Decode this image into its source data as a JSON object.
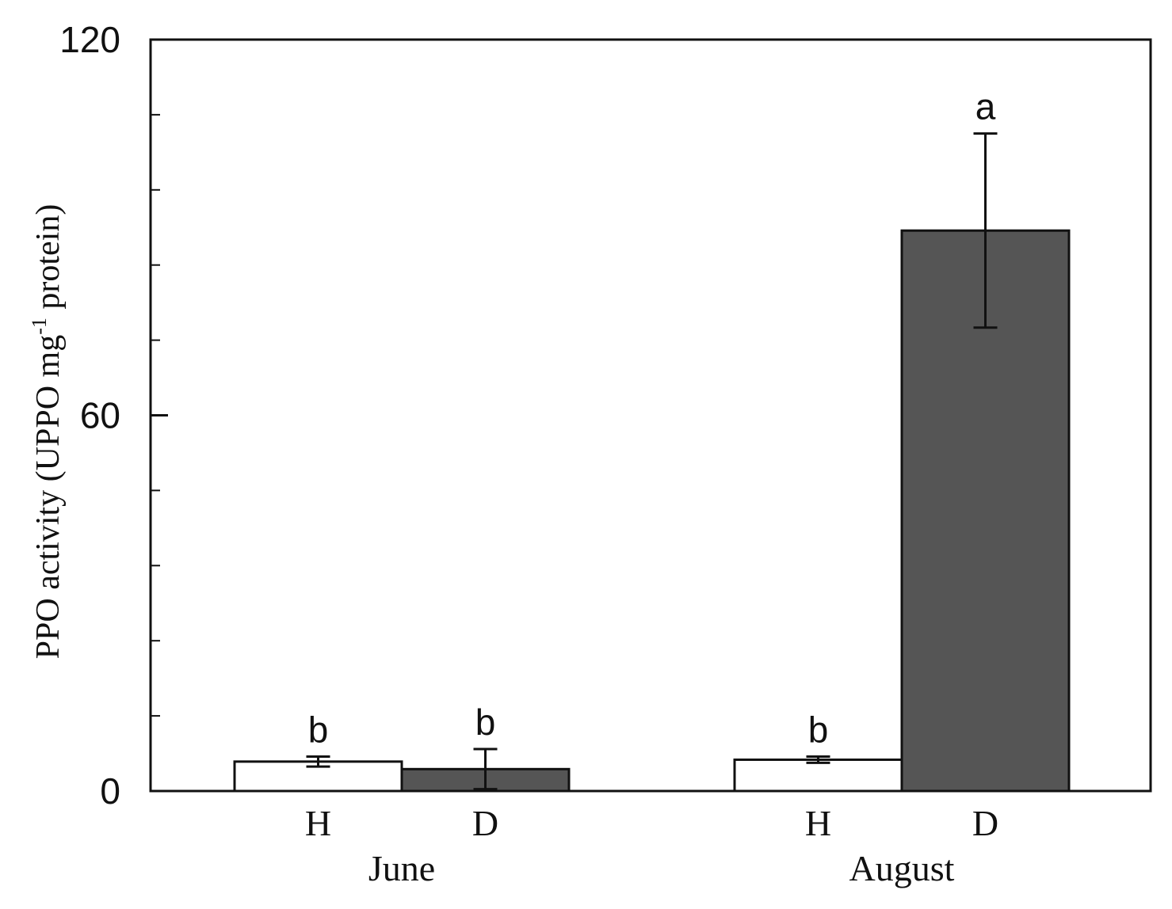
{
  "chart_data": {
    "type": "bar",
    "title": "",
    "xlabel": "",
    "ylabel_prefix": "PPO activity (UPPO mg",
    "ylabel_superscript": "-1",
    "ylabel_suffix": " protein)",
    "ylim": [
      0,
      120
    ],
    "yticks": [
      0,
      60,
      120
    ],
    "yminor_step": 12,
    "grid": false,
    "groups": [
      {
        "name": "June",
        "bars": [
          {
            "label": "H",
            "value": 4.7,
            "error": 0.8,
            "sig": "b",
            "fill": "#ffffff"
          },
          {
            "label": "D",
            "value": 3.5,
            "error": 3.2,
            "sig": "b",
            "fill": "#555555"
          }
        ]
      },
      {
        "name": "August",
        "bars": [
          {
            "label": "H",
            "value": 5.0,
            "error": 0.5,
            "sig": "b",
            "fill": "#ffffff"
          },
          {
            "label": "D",
            "value": 89.5,
            "error": 15.5,
            "sig": "a",
            "fill": "#555555"
          }
        ]
      }
    ]
  }
}
